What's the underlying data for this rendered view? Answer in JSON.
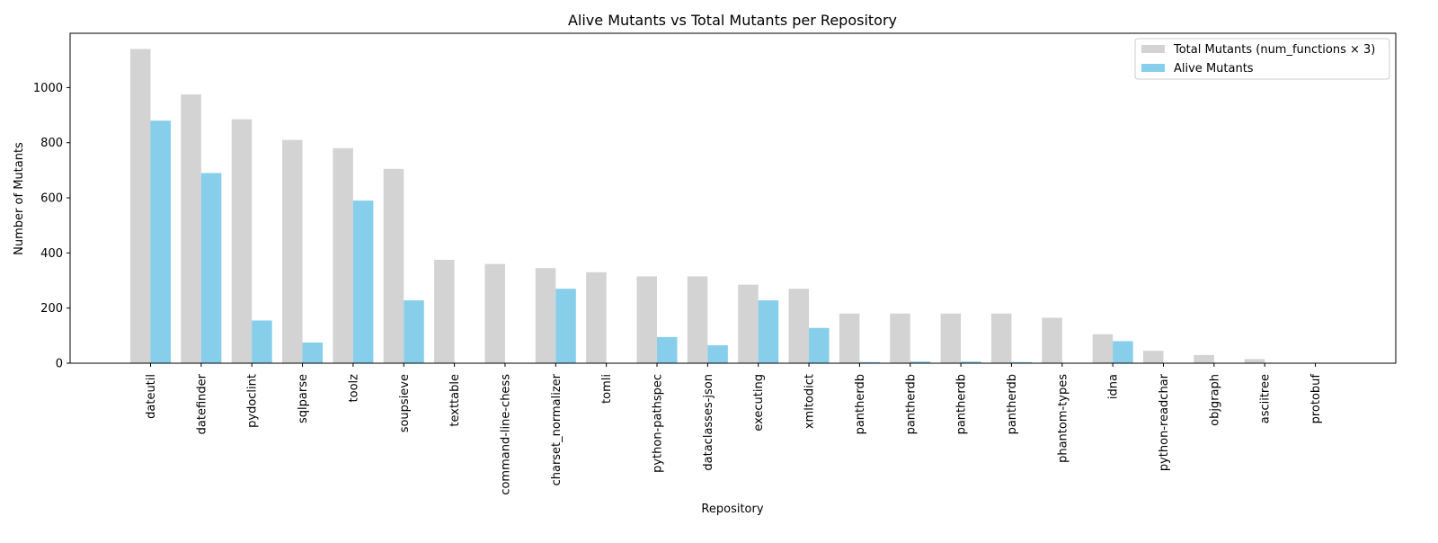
{
  "chart_data": {
    "type": "bar",
    "title": "Alive Mutants vs Total Mutants per Repository",
    "xlabel": "Repository",
    "ylabel": "Number of Mutants",
    "ylim": [
      0,
      1197
    ],
    "yticks": [
      0,
      200,
      400,
      600,
      800,
      1000
    ],
    "grid": false,
    "legend_position": "top-right",
    "categories": [
      "dateutil",
      "datefinder",
      "pydoclint",
      "sqlparse",
      "toolz",
      "soupsieve",
      "texttable",
      "command-line-chess",
      "charset_normalizer",
      "tomli",
      "python-pathspec",
      "dataclasses-json",
      "executing",
      "xmltodict",
      "pantherdb",
      "pantherdb",
      "pantherdb",
      "pantherdb",
      "phantom-types",
      "idna",
      "python-readchar",
      "objgraph",
      "asciitree",
      "protobuf"
    ],
    "series": [
      {
        "name": "Total Mutants (num_functions × 3)",
        "color": "#d3d3d3",
        "values": [
          1140,
          975,
          885,
          810,
          780,
          705,
          375,
          360,
          345,
          330,
          315,
          315,
          285,
          270,
          180,
          180,
          180,
          180,
          165,
          105,
          45,
          30,
          15,
          0
        ]
      },
      {
        "name": "Alive Mutants",
        "color": "#87ceeb",
        "values": [
          880,
          690,
          155,
          75,
          590,
          228,
          0,
          0,
          270,
          0,
          95,
          65,
          228,
          128,
          4,
          6,
          6,
          4,
          0,
          80,
          0,
          0,
          0,
          0
        ]
      }
    ]
  }
}
